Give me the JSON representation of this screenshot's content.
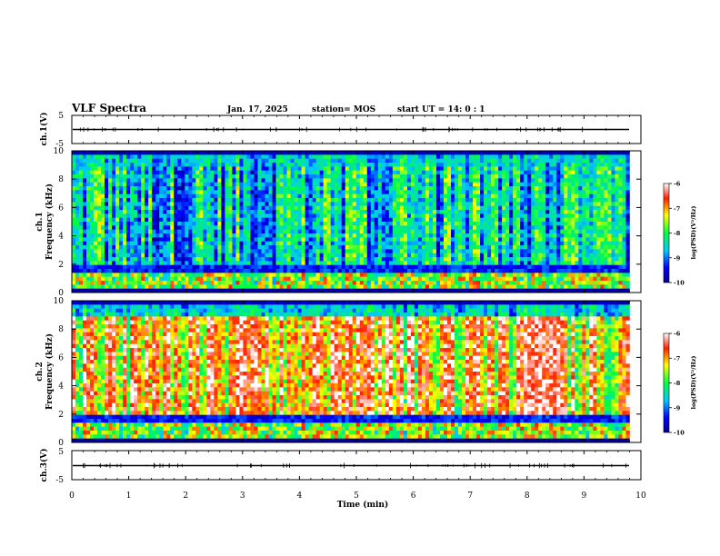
{
  "header": {
    "title": "VLF Spectra",
    "date": "Jan. 17, 2025",
    "station": "station= MOS",
    "start": "start  UT =   14: 0  : 1"
  },
  "chart_data": [
    {
      "type": "line",
      "name": "ch1-waveform",
      "ylabel": "ch.1(V)",
      "ylim": [
        -5,
        5
      ],
      "yticks": [
        "5",
        "-5"
      ],
      "x": [
        0,
        9.8
      ],
      "y": [
        0,
        0
      ],
      "xlim": [
        0,
        10
      ]
    },
    {
      "type": "heatmap",
      "name": "ch1-spectrogram",
      "ylabel": "ch.1\nFrequency (kHz)",
      "ylim": [
        0,
        10
      ],
      "yticks": [
        "0",
        "2",
        "4",
        "6",
        "8",
        "10"
      ],
      "xlim": [
        0,
        10
      ],
      "x_extent": [
        0,
        9.8
      ],
      "colorbar": {
        "label": "log(PSD)(V²/Hz)",
        "range": [
          -10,
          -6
        ],
        "ticks": [
          "-6",
          "-7",
          "-8",
          "-9",
          "-10"
        ]
      }
    },
    {
      "type": "heatmap",
      "name": "ch2-spectrogram",
      "ylabel": "ch.2\nFrequency (kHz)",
      "ylim": [
        0,
        10
      ],
      "yticks": [
        "0",
        "2",
        "4",
        "6",
        "8",
        "10"
      ],
      "xlim": [
        0,
        10
      ],
      "x_extent": [
        0,
        9.8
      ],
      "colorbar": {
        "label": "log(PSD)(V²/Hz)",
        "range": [
          -10,
          -6
        ],
        "ticks": [
          "-6",
          "-7",
          "-8",
          "-9",
          "-10"
        ]
      }
    },
    {
      "type": "line",
      "name": "ch3-waveform",
      "ylabel": "ch.3(V)",
      "ylim": [
        -5,
        5
      ],
      "yticks": [
        "5",
        "-5"
      ],
      "x": [
        0,
        9.8
      ],
      "y": [
        0,
        0
      ],
      "xlim": [
        0,
        10
      ],
      "xlabel": "Time (min)",
      "xticks": [
        "0",
        "1",
        "2",
        "3",
        "4",
        "5",
        "6",
        "7",
        "8",
        "9",
        "10"
      ]
    }
  ]
}
